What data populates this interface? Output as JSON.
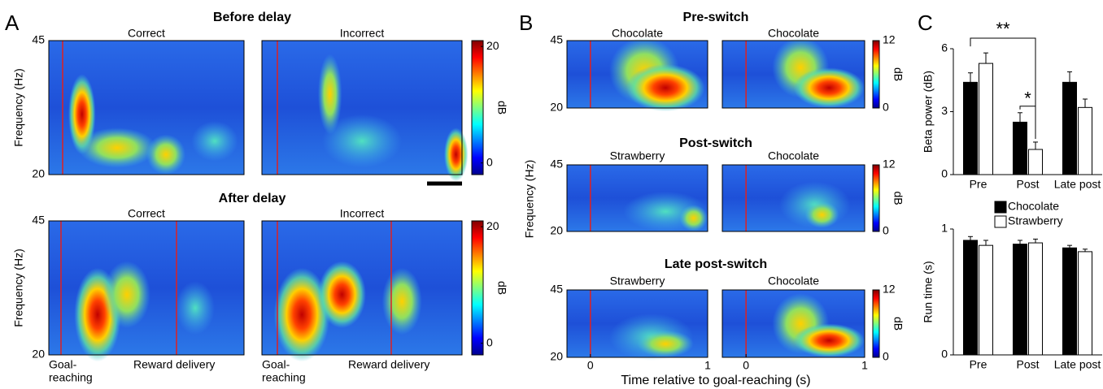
{
  "panel_a": {
    "letter": "A",
    "rows": [
      {
        "title": "Before delay",
        "y_label": "Frequency (Hz)",
        "ylim": [
          20,
          45
        ],
        "yticks": [
          45,
          20
        ],
        "clim": [
          -2,
          21
        ],
        "colorbar_ticks": [
          20,
          0
        ],
        "colorbar_label": "dB",
        "plots": [
          {
            "label": "Correct"
          },
          {
            "label": "Incorrect"
          }
        ]
      },
      {
        "title": "After delay",
        "y_label": "Frequency (Hz)",
        "ylim": [
          20,
          45
        ],
        "yticks": [
          45,
          20
        ],
        "clim": [
          -2,
          21
        ],
        "colorbar_ticks": [
          20,
          0
        ],
        "colorbar_label": "dB",
        "plots": [
          {
            "label": "Correct",
            "event_labels": [
              [
                "Goal-",
                "reaching"
              ],
              [
                "Reward delivery"
              ]
            ]
          },
          {
            "label": "Incorrect",
            "event_labels": [
              [
                "Goal-",
                "reaching"
              ],
              [
                "Reward delivery"
              ]
            ]
          }
        ]
      }
    ]
  },
  "panel_b": {
    "letter": "B",
    "y_label": "Frequency (Hz)",
    "x_label": "Time relative to goal-reaching (s)",
    "xlim": [
      -0.2,
      1
    ],
    "rows": [
      {
        "title": "Pre-switch",
        "ylim": [
          20,
          45
        ],
        "yticks": [
          45,
          20
        ],
        "clim": [
          0,
          12
        ],
        "colorbar_ticks": [
          12,
          0
        ],
        "colorbar_label": "dB",
        "plots": [
          {
            "label": "Chocolate"
          },
          {
            "label": "Chocolate"
          }
        ]
      },
      {
        "title": "Post-switch",
        "ylim": [
          20,
          45
        ],
        "yticks": [
          45,
          20
        ],
        "clim": [
          0,
          12
        ],
        "colorbar_ticks": [
          12,
          0
        ],
        "colorbar_label": "dB",
        "plots": [
          {
            "label": "Strawberry"
          },
          {
            "label": "Chocolate"
          }
        ]
      },
      {
        "title": "Late post-switch",
        "ylim": [
          20,
          45
        ],
        "yticks": [
          45,
          20
        ],
        "clim": [
          0,
          12
        ],
        "colorbar_ticks": [
          12,
          0
        ],
        "colorbar_label": "dB",
        "plots": [
          {
            "label": "Strawberry",
            "xticks": [
              0,
              1
            ]
          },
          {
            "label": "Chocolate",
            "xticks": [
              0,
              1
            ]
          }
        ]
      }
    ]
  },
  "panel_c": {
    "letter": "C"
  },
  "chart_data": [
    {
      "type": "bar",
      "y_label": "Beta power (dB)",
      "categories": [
        "Pre",
        "Post",
        "Late post"
      ],
      "ylim": [
        0,
        6
      ],
      "yticks": [
        0,
        3,
        6
      ],
      "legend": "below",
      "series": [
        {
          "name": "Chocolate",
          "color": "#000000",
          "values": [
            4.4,
            2.5,
            4.4
          ],
          "errors": [
            0.45,
            0.45,
            0.5
          ]
        },
        {
          "name": "Strawberry",
          "color": "#ffffff",
          "values": [
            5.3,
            1.2,
            3.2
          ],
          "errors": [
            0.5,
            0.35,
            0.4
          ]
        }
      ],
      "annotations": [
        "**",
        "*"
      ]
    },
    {
      "type": "bar",
      "y_label": "Run time (s)",
      "categories": [
        "Pre",
        "Post",
        "Late post"
      ],
      "ylim": [
        0,
        1
      ],
      "yticks": [
        0,
        1
      ],
      "series": [
        {
          "color": "#000000",
          "values": [
            0.91,
            0.88,
            0.85
          ],
          "errors": [
            0.03,
            0.03,
            0.02
          ]
        },
        {
          "color": "#ffffff",
          "values": [
            0.87,
            0.89,
            0.82
          ],
          "errors": [
            0.04,
            0.03,
            0.02
          ]
        }
      ]
    }
  ]
}
